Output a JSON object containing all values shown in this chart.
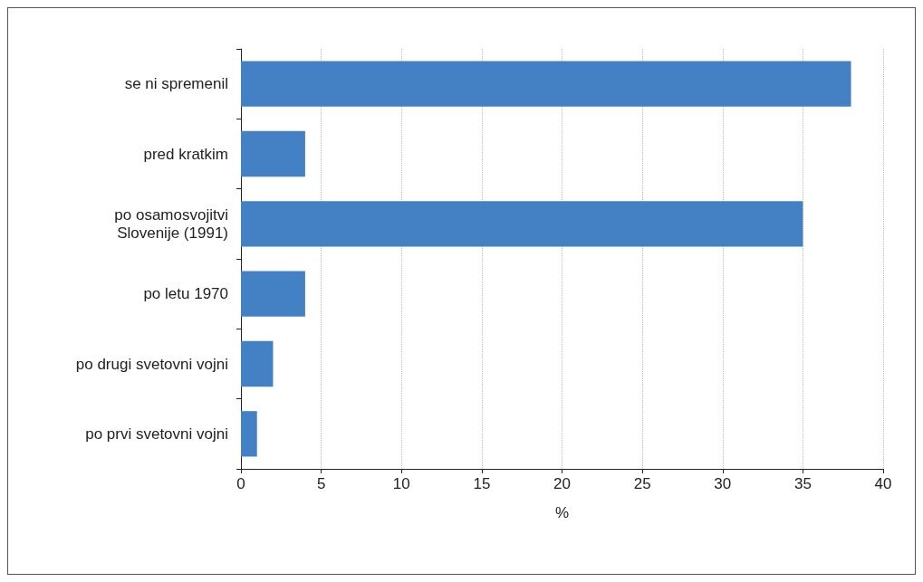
{
  "chart_data": {
    "type": "bar",
    "orientation": "horizontal",
    "xlabel": "%",
    "categories": [
      "se ni spremenil",
      "pred kratkim",
      "po osamosvojitvi\nSlovenije (1991)",
      "po letu 1970",
      "po drugi svetovni vojni",
      "po prvi svetovni vojni"
    ],
    "values": [
      38,
      4,
      35,
      4,
      2,
      1
    ],
    "color": "#4481c4",
    "xlim": [
      0,
      40
    ],
    "xticks": [
      0,
      5,
      10,
      15,
      20,
      25,
      30,
      35,
      40
    ],
    "grid": "x"
  }
}
